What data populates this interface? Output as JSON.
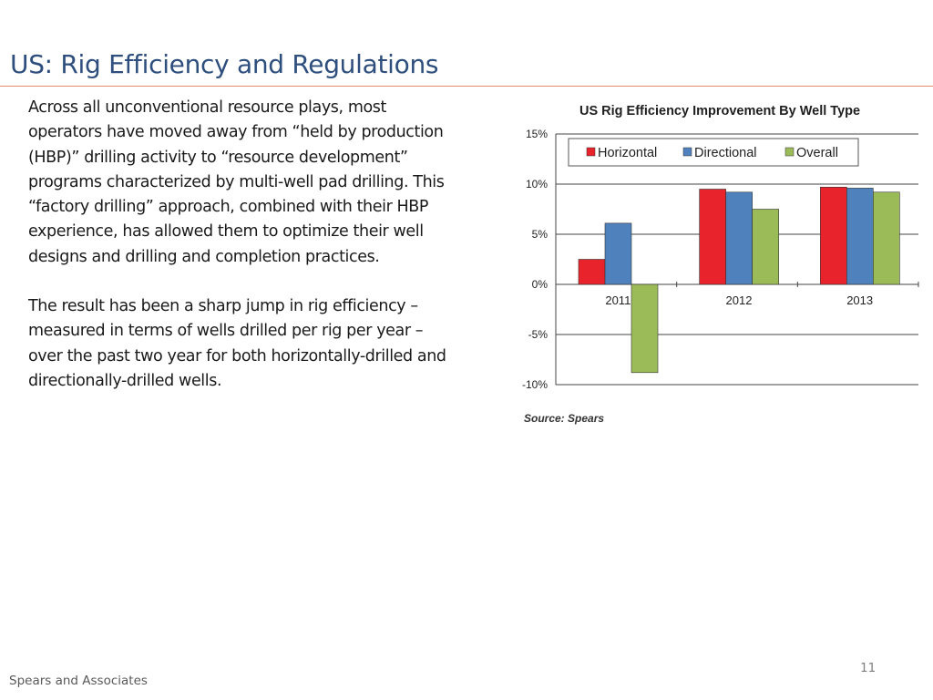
{
  "slide": {
    "title": "US: Rig Efficiency and Regulations",
    "paragraphs": [
      "Across all unconventional resource plays, most operators have moved away from “held by production (HBP)” drilling activity to “resource development” programs characterized by multi-well pad drilling.  This “factory drilling” approach, combined with their HBP experience, has allowed them to optimize their well designs and drilling and completion practices.",
      "The result has been a sharp jump in rig efficiency – measured in terms of wells drilled per rig per year – over the past two year for both horizontally-drilled and directionally-drilled wells."
    ],
    "footer": "Spears and Associates",
    "page_number": "11"
  },
  "colors": {
    "title": "#2e4f7e",
    "rule": "#e08a6a",
    "horizontal": "#e8232b",
    "directional": "#4f81bd",
    "overall": "#9bbb59"
  },
  "chart_data": {
    "type": "bar",
    "title": "US Rig Efficiency  Improvement  By Well Type",
    "source": "Source: Spears",
    "categories": [
      "2011",
      "2012",
      "2013"
    ],
    "series": [
      {
        "name": "Horizontal",
        "color": "#e8232b",
        "values": [
          2.5,
          9.5,
          9.7
        ]
      },
      {
        "name": "Directional",
        "color": "#4f81bd",
        "values": [
          6.1,
          9.2,
          9.6
        ]
      },
      {
        "name": "Overall",
        "color": "#9bbb59",
        "values": [
          -8.8,
          7.5,
          9.2
        ]
      }
    ],
    "ylim": [
      -10,
      15
    ],
    "yticks": [
      "-10%",
      "-5%",
      "0%",
      "5%",
      "10%",
      "15%"
    ],
    "ytick_values": [
      -10,
      -5,
      0,
      5,
      10,
      15
    ],
    "grid": true,
    "legend_position": "top"
  }
}
